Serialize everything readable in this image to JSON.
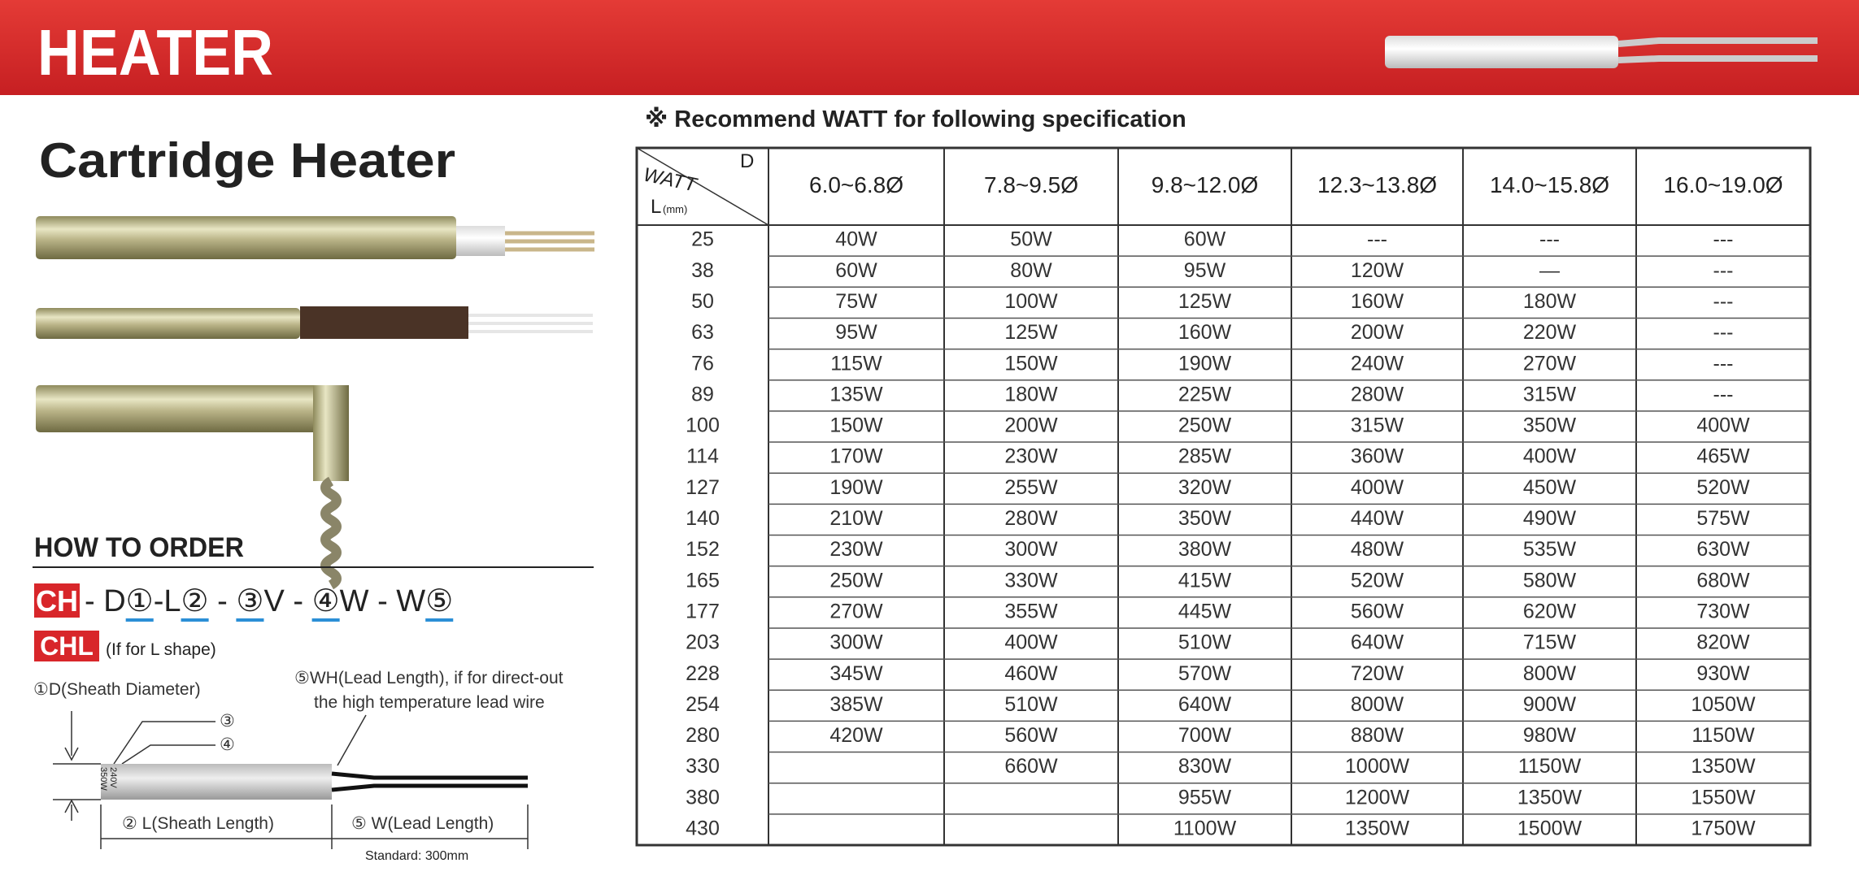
{
  "header": {
    "title": "HEATER"
  },
  "product_title": "Cartridge Heater",
  "table": {
    "note": "※ Recommend WATT for following specification",
    "corner": {
      "watt": "WATT",
      "d": "D",
      "l": "L",
      "l_unit": "(mm)"
    },
    "columns": [
      "6.0~6.8Ø",
      "7.8~9.5Ø",
      "9.8~12.0Ø",
      "12.3~13.8Ø",
      "14.0~15.8Ø",
      "16.0~19.0Ø"
    ],
    "rows": [
      [
        25,
        "40W",
        "50W",
        "60W",
        "---",
        "---",
        "---"
      ],
      [
        38,
        "60W",
        "80W",
        "95W",
        "120W",
        "—",
        "---"
      ],
      [
        50,
        "75W",
        "100W",
        "125W",
        "160W",
        "180W",
        "---"
      ],
      [
        63,
        "95W",
        "125W",
        "160W",
        "200W",
        "220W",
        "---"
      ],
      [
        76,
        "115W",
        "150W",
        "190W",
        "240W",
        "270W",
        "---"
      ],
      [
        89,
        "135W",
        "180W",
        "225W",
        "280W",
        "315W",
        "---"
      ],
      [
        100,
        "150W",
        "200W",
        "250W",
        "315W",
        "350W",
        "400W"
      ],
      [
        114,
        "170W",
        "230W",
        "285W",
        "360W",
        "400W",
        "465W"
      ],
      [
        127,
        "190W",
        "255W",
        "320W",
        "400W",
        "450W",
        "520W"
      ],
      [
        140,
        "210W",
        "280W",
        "350W",
        "440W",
        "490W",
        "575W"
      ],
      [
        152,
        "230W",
        "300W",
        "380W",
        "480W",
        "535W",
        "630W"
      ],
      [
        165,
        "250W",
        "330W",
        "415W",
        "520W",
        "580W",
        "680W"
      ],
      [
        177,
        "270W",
        "355W",
        "445W",
        "560W",
        "620W",
        "730W"
      ],
      [
        203,
        "300W",
        "400W",
        "510W",
        "640W",
        "715W",
        "820W"
      ],
      [
        228,
        "345W",
        "460W",
        "570W",
        "720W",
        "800W",
        "930W"
      ],
      [
        254,
        "385W",
        "510W",
        "640W",
        "800W",
        "900W",
        "1050W"
      ],
      [
        280,
        "420W",
        "560W",
        "700W",
        "880W",
        "980W",
        "1150W"
      ],
      [
        330,
        null,
        "660W",
        "830W",
        "1000W",
        "1150W",
        "1350W"
      ],
      [
        380,
        null,
        null,
        "955W",
        "1200W",
        "1350W",
        "1550W"
      ],
      [
        430,
        null,
        null,
        "1100W",
        "1350W",
        "1500W",
        "1750W"
      ]
    ]
  },
  "how_to_order": {
    "title": "HOW TO ORDER",
    "prefix": "CH",
    "code": [
      "- D",
      "①",
      "-L",
      "②",
      " - ",
      "③",
      "V - ",
      "④",
      "W - W",
      "⑤"
    ],
    "l_prefix": "CHL",
    "l_note": "(If for L shape)"
  },
  "diagram": {
    "d_label": "①D(Sheath Diameter)",
    "wh_label": [
      "⑤WH(Lead Length), if for direct-out",
      "the high temperature lead wire"
    ],
    "marker_3": "③",
    "marker_4": "④",
    "sheath_text": [
      "240V",
      "350W"
    ],
    "l_label": "② L(Sheath Length)",
    "w_label": "⑤ W(Lead Length)",
    "standard": "Standard: 300mm"
  }
}
